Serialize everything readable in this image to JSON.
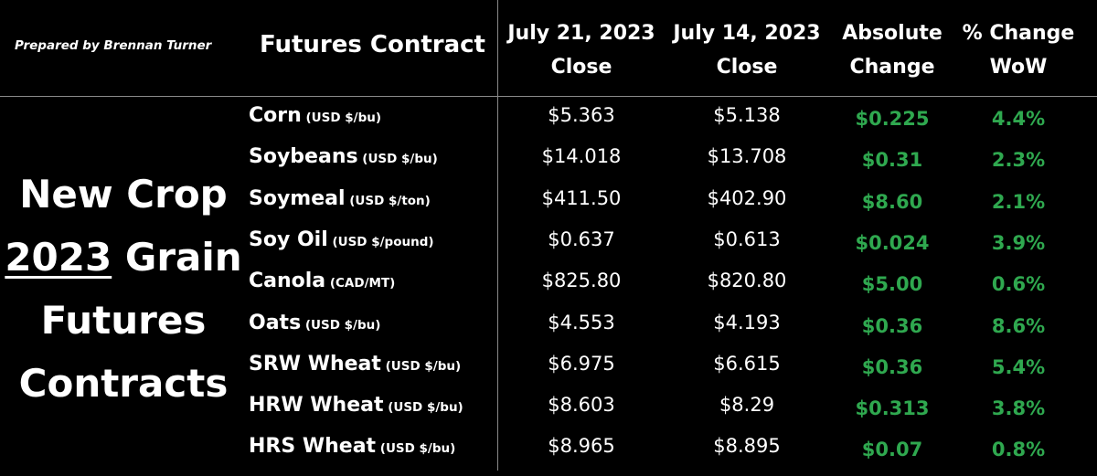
{
  "credit": "Prepared by Brennan Turner",
  "title": {
    "line1": "New Crop",
    "year": "2023",
    "line2_rest": " Grain",
    "line3": "Futures",
    "line4": "Contracts"
  },
  "headers": {
    "contract": "Futures Contract",
    "col1": [
      "July 21, 2023",
      "Close"
    ],
    "col2": [
      "July 14, 2023",
      "Close"
    ],
    "col3": [
      "Absolute",
      "Change"
    ],
    "col4": [
      "% Change",
      "WoW"
    ]
  },
  "colors": {
    "background": "#000000",
    "text": "#ffffff",
    "positive_change": "#2fa84f",
    "divider": "#8a8a8a"
  },
  "rows": [
    {
      "name": "Corn",
      "unit": "(USD $/bu)",
      "close_jul21": "$5.363",
      "close_jul14": "$5.138",
      "abs_change": "$0.225",
      "pct_change": "4.4%"
    },
    {
      "name": "Soybeans",
      "unit": "(USD $/bu)",
      "close_jul21": "$14.018",
      "close_jul14": "$13.708",
      "abs_change": "$0.31",
      "pct_change": "2.3%"
    },
    {
      "name": "Soymeal",
      "unit": "(USD $/ton)",
      "close_jul21": "$411.50",
      "close_jul14": "$402.90",
      "abs_change": "$8.60",
      "pct_change": "2.1%"
    },
    {
      "name": "Soy Oil",
      "unit": "(USD $/pound)",
      "close_jul21": "$0.637",
      "close_jul14": "$0.613",
      "abs_change": "$0.024",
      "pct_change": "3.9%"
    },
    {
      "name": "Canola",
      "unit": "(CAD/MT)",
      "close_jul21": "$825.80",
      "close_jul14": "$820.80",
      "abs_change": "$5.00",
      "pct_change": "0.6%"
    },
    {
      "name": "Oats",
      "unit": "(USD $/bu)",
      "close_jul21": "$4.553",
      "close_jul14": "$4.193",
      "abs_change": "$0.36",
      "pct_change": "8.6%"
    },
    {
      "name": "SRW Wheat",
      "unit": "(USD $/bu)",
      "close_jul21": "$6.975",
      "close_jul14": "$6.615",
      "abs_change": "$0.36",
      "pct_change": "5.4%"
    },
    {
      "name": "HRW Wheat",
      "unit": "(USD $/bu)",
      "close_jul21": "$8.603",
      "close_jul14": "$8.29",
      "abs_change": "$0.313",
      "pct_change": "3.8%"
    },
    {
      "name": "HRS Wheat",
      "unit": "(USD $/bu)",
      "close_jul21": "$8.965",
      "close_jul14": "$8.895",
      "abs_change": "$0.07",
      "pct_change": "0.8%"
    }
  ]
}
